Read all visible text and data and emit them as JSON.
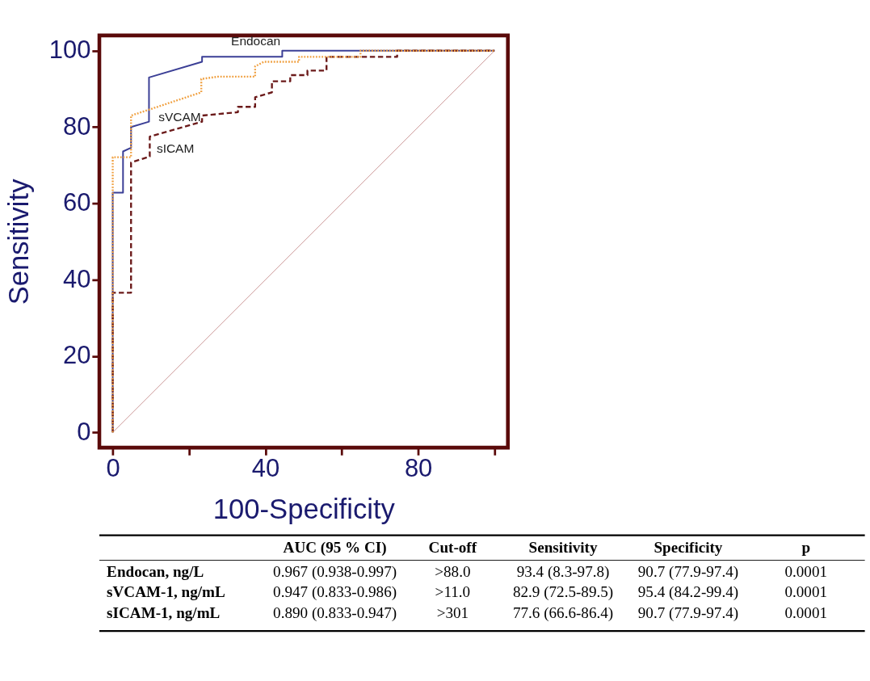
{
  "chart_data": {
    "type": "line",
    "xlabel": "100-Specificity",
    "ylabel": "Sensitivity",
    "xlim": [
      -3.5,
      103.5
    ],
    "ylim": [
      -4,
      104
    ],
    "xticks": [
      0,
      {
        "value": 20,
        "label": null
      },
      40,
      {
        "value": 60,
        "label": null
      },
      80,
      {
        "value": 100,
        "label": null
      }
    ],
    "yticks": [
      0,
      20,
      40,
      60,
      80,
      100
    ],
    "grid": false,
    "legend": false,
    "marker": "none",
    "series": [
      {
        "name": "Endocan",
        "color": "#3b3f96",
        "line_style": "solid",
        "x": [
          0,
          0,
          2.7,
          2.7,
          4.8,
          4.8,
          9.5,
          9.5,
          23.4,
          23.4,
          44.4,
          44.4,
          100
        ],
        "values": [
          0,
          62.8,
          62.8,
          73.6,
          74.6,
          80,
          81.4,
          93,
          97.1,
          98.4,
          98.4,
          100,
          100
        ]
      },
      {
        "name": "sVCAM",
        "color": "#f0a040",
        "line_style": "dotted",
        "x": [
          0,
          0,
          4.8,
          4.8,
          23.2,
          23.2,
          27.6,
          37.3,
          37.3,
          39.6,
          48.8,
          48.8,
          64.9,
          64.9,
          100
        ],
        "values": [
          0,
          72.1,
          72.1,
          83,
          89.1,
          92.6,
          93.2,
          93.2,
          95.9,
          97.1,
          97.1,
          98.4,
          98.4,
          100,
          100
        ]
      },
      {
        "name": "sICAM",
        "color": "#6b1a1a",
        "line_style": "dashed",
        "x": [
          0,
          0,
          4.8,
          4.8,
          9.7,
          9.7,
          23.4,
          23.4,
          32.8,
          32.8,
          37.3,
          37.3,
          41.7,
          41.7,
          46.5,
          46.5,
          51,
          51,
          56,
          56,
          74.5,
          74.5,
          100
        ],
        "values": [
          0,
          36.6,
          36.6,
          70.7,
          72.3,
          77.5,
          81.4,
          83,
          83.9,
          85.3,
          85.3,
          87.8,
          89.1,
          92,
          92,
          93.6,
          93.6,
          94.8,
          94.8,
          98.4,
          98.4,
          100,
          100
        ]
      },
      {
        "color": "#c89090",
        "line_style": "solid",
        "x": [
          0,
          100
        ],
        "values": [
          0,
          100
        ]
      }
    ],
    "annotations": [
      "AUC (95 % CI)",
      "Cut-off",
      "Sensitivity",
      "Specificity",
      "p",
      "Endocan, ng/L",
      "0.967 (0.938-0.997)",
      ">88.0",
      "93.4 (8.3-97.8)",
      "90.7 (77.9-97.4)",
      "0.0001",
      "sVCAM-1, ng/mL",
      "0.947 (0.833-0.986)",
      ">11.0",
      "82.9 (72.5-89.5)",
      "95.4 (84.2-99.4)",
      "0.0001",
      "sICAM-1, ng/mL",
      "0.890 (0.833-0.947)",
      ">301",
      "77.6 (66.6-86.4)",
      "90.7 (77.9-97.4)",
      "0.0001"
    ]
  }
}
